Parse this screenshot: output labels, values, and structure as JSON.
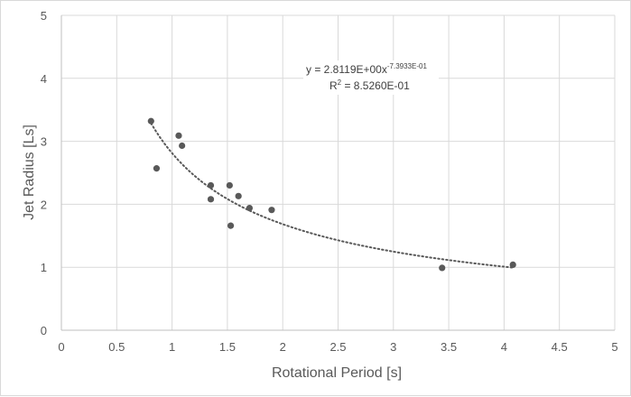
{
  "chart_data": {
    "type": "scatter",
    "xlabel": "Rotational Period [s]",
    "ylabel": "Jet Radius [Ls]",
    "xlim": [
      0,
      5
    ],
    "ylim": [
      0,
      5
    ],
    "xticks": [
      "0",
      "0.5",
      "1",
      "1.5",
      "2",
      "2.5",
      "3",
      "3.5",
      "4",
      "4.5",
      "5"
    ],
    "yticks": [
      "0",
      "1",
      "2",
      "3",
      "4",
      "5"
    ],
    "grid": true,
    "legend": "none",
    "marker_color": "#595959",
    "trendline_color": "#595959",
    "series": [
      {
        "x": [
          0.81,
          0.86,
          1.06,
          1.09,
          1.35,
          1.35,
          1.52,
          1.53,
          1.6,
          1.7,
          1.9,
          3.44,
          4.08
        ],
        "y": [
          3.32,
          2.57,
          3.09,
          2.93,
          2.3,
          2.08,
          2.3,
          1.66,
          2.13,
          1.94,
          1.91,
          0.99,
          1.04
        ]
      }
    ],
    "trendline": {
      "type": "power",
      "coefficient": 2.8119,
      "exponent": -0.73933,
      "x_range": [
        0.81,
        4.08
      ],
      "equation_text": "y = 2.8119E+00x",
      "equation_exponent": "-7.3933E-01",
      "r2_text": "R",
      "r2_sup": "2",
      "r2_value": " = 8.5260E-01"
    }
  }
}
